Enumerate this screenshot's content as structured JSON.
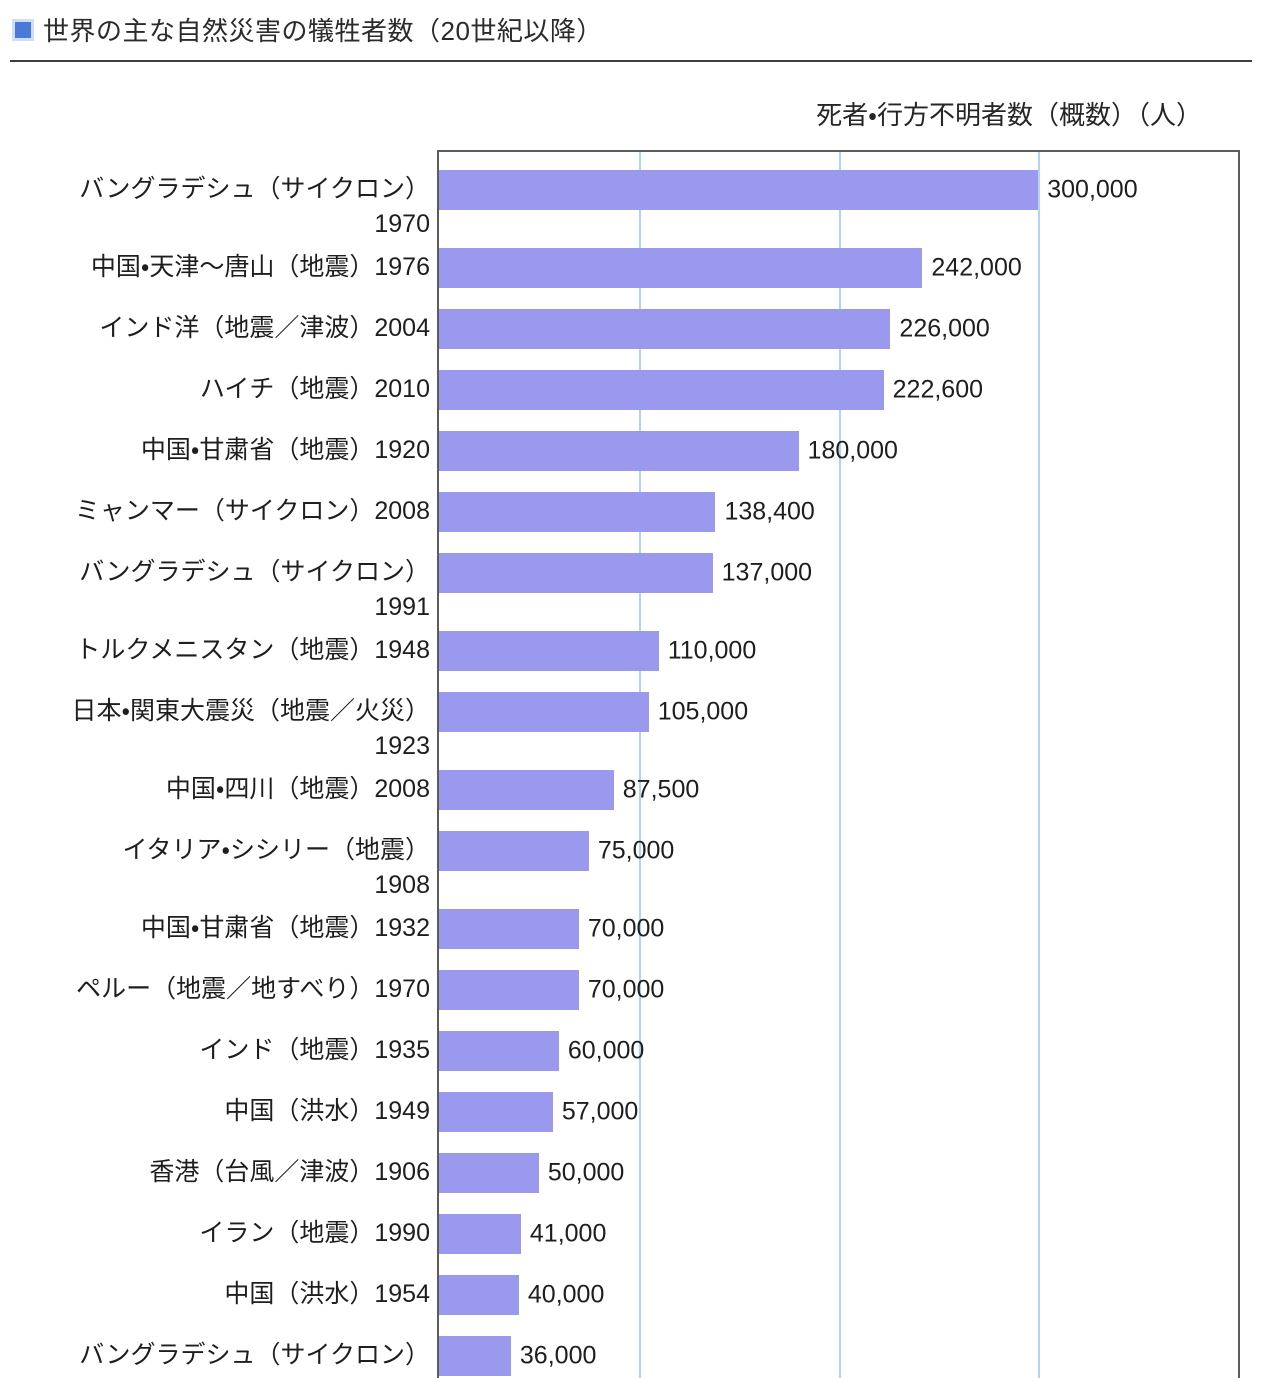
{
  "page": {
    "title": "世界の主な自然災害の犠牲者数（20世紀以降）"
  },
  "colors": {
    "bullet": "#4b79da",
    "bullet_ring": "#cfdef6",
    "bar": "#9a99ee",
    "gridline": "#b3d4f0",
    "border": "#5c5c5c",
    "rule": "#3f3f3f",
    "text": "#1f1f1f"
  },
  "chart_data": {
    "type": "bar",
    "orientation": "horizontal",
    "title": "世界の主な自然災害の犠牲者数（20世紀以降）",
    "axis_title": "死者・行方不明者数（概数）（人）",
    "xlim": [
      0,
      400000
    ],
    "gridline_step": 100000,
    "grid": true,
    "value_labels_shown": true,
    "rows": [
      {
        "label": "バングラデシュ（サイクロン）",
        "year": "1970",
        "value": 300000,
        "value_label": "300,000",
        "year_on_second_line": true
      },
      {
        "label": "中国・天津〜唐山（地震）",
        "year": "1976",
        "value": 242000,
        "value_label": "242,000",
        "year_on_second_line": false
      },
      {
        "label": "インド洋（地震／津波）",
        "year": "2004",
        "value": 226000,
        "value_label": "226,000",
        "year_on_second_line": false
      },
      {
        "label": "ハイチ（地震）",
        "year": "2010",
        "value": 222600,
        "value_label": "222,600",
        "year_on_second_line": false
      },
      {
        "label": "中国・甘粛省（地震）",
        "year": "1920",
        "value": 180000,
        "value_label": "180,000",
        "year_on_second_line": false
      },
      {
        "label": "ミャンマー（サイクロン）",
        "year": "2008",
        "value": 138400,
        "value_label": "138,400",
        "year_on_second_line": false
      },
      {
        "label": "バングラデシュ（サイクロン）",
        "year": "1991",
        "value": 137000,
        "value_label": "137,000",
        "year_on_second_line": true
      },
      {
        "label": "トルクメニスタン（地震）",
        "year": "1948",
        "value": 110000,
        "value_label": "110,000",
        "year_on_second_line": false
      },
      {
        "label": "日本・関東大震災（地震／火災）",
        "year": "1923",
        "value": 105000,
        "value_label": "105,000",
        "year_on_second_line": true
      },
      {
        "label": "中国・四川（地震）",
        "year": "2008",
        "value": 87500,
        "value_label": "87,500",
        "year_on_second_line": false
      },
      {
        "label": "イタリア・シシリー（地震）",
        "year": "1908",
        "value": 75000,
        "value_label": "75,000",
        "year_on_second_line": true
      },
      {
        "label": "中国・甘粛省（地震）",
        "year": "1932",
        "value": 70000,
        "value_label": "70,000",
        "year_on_second_line": false
      },
      {
        "label": "ペルー（地震／地すべり）",
        "year": "1970",
        "value": 70000,
        "value_label": "70,000",
        "year_on_second_line": false
      },
      {
        "label": "インド（地震）",
        "year": "1935",
        "value": 60000,
        "value_label": "60,000",
        "year_on_second_line": false
      },
      {
        "label": "中国（洪水）",
        "year": "1949",
        "value": 57000,
        "value_label": "57,000",
        "year_on_second_line": false
      },
      {
        "label": "香港（台風／津波）",
        "year": "1906",
        "value": 50000,
        "value_label": "50,000",
        "year_on_second_line": false
      },
      {
        "label": "イラン（地震）",
        "year": "1990",
        "value": 41000,
        "value_label": "41,000",
        "year_on_second_line": false
      },
      {
        "label": "中国（洪水）",
        "year": "1954",
        "value": 40000,
        "value_label": "40,000",
        "year_on_second_line": false
      },
      {
        "label": "バングラデシュ（サイクロン）",
        "year": "",
        "value": 36000,
        "value_label": "36,000",
        "year_on_second_line": false
      }
    ]
  }
}
